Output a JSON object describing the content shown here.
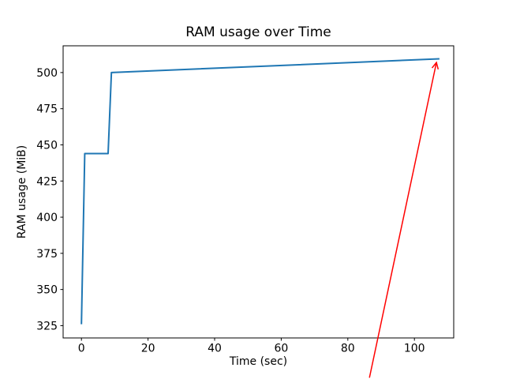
{
  "chart_data": {
    "type": "line",
    "title": "RAM usage over Time",
    "xlabel": "Time (sec)",
    "ylabel": "RAM usage (MiB)",
    "xlim": [
      -5.5,
      111.8
    ],
    "ylim": [
      316.5,
      518.5
    ],
    "x_ticks": [
      0,
      20,
      40,
      60,
      80,
      100
    ],
    "y_ticks": [
      325,
      350,
      375,
      400,
      425,
      450,
      475,
      500
    ],
    "grid": false,
    "legend": false,
    "axes_color": "#000000",
    "tick_font_px": 14,
    "series": [
      {
        "name": "RAM usage",
        "color": "#1f77b4",
        "line_width": 2,
        "points": [
          [
            0,
            326
          ],
          [
            1,
            444
          ],
          [
            8,
            444
          ],
          [
            9,
            500
          ],
          [
            107.5,
            509.5
          ]
        ]
      }
    ],
    "annotations": [
      {
        "type": "arrow",
        "color": "#ff0000",
        "line_width": 1.5,
        "from_xy": [
          86.5,
          289
        ],
        "to_xy": [
          106.6,
          507
        ]
      }
    ]
  }
}
